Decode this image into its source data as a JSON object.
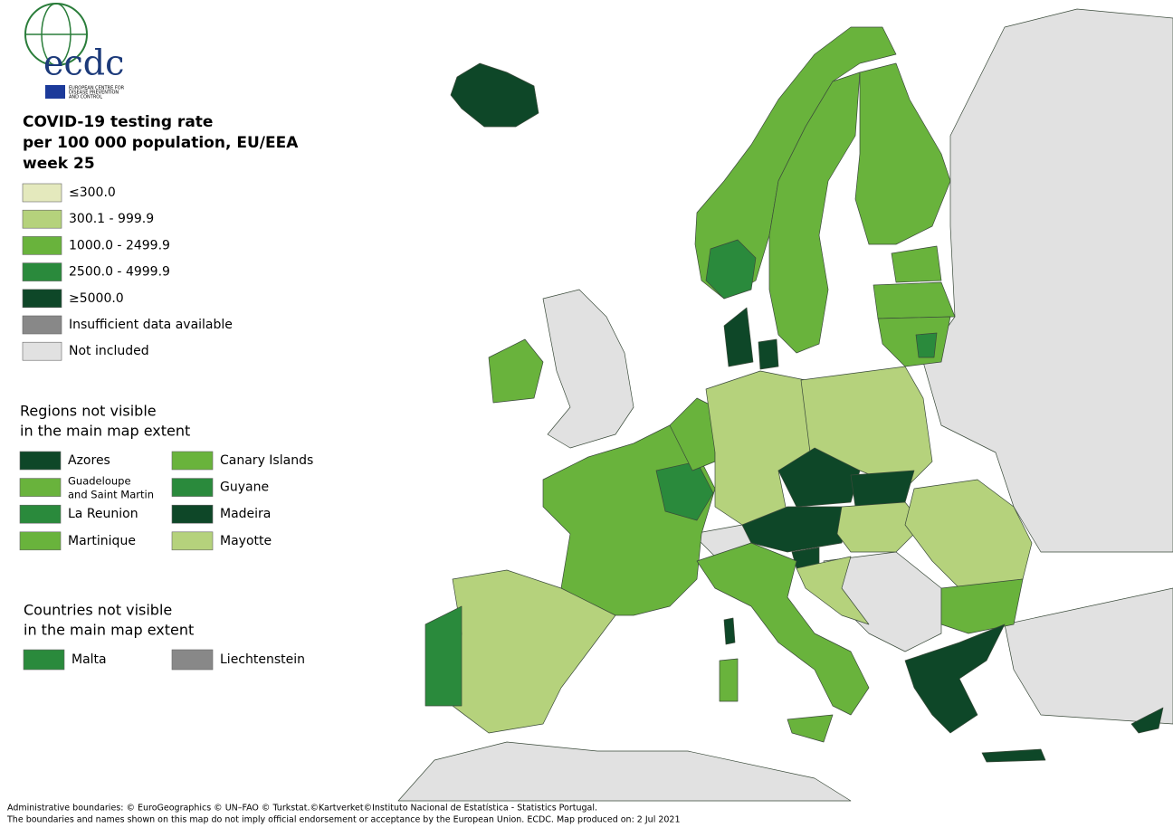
{
  "logo": {
    "name": "ecdc",
    "caption": [
      "EUROPEAN CENTRE FOR",
      "DISEASE PREVENTION",
      "AND CONTROL"
    ]
  },
  "title": [
    "COVID-19 testing rate",
    "per 100 000 population, EU/EEA",
    "week 25"
  ],
  "legend": {
    "items": [
      {
        "label": "≤300.0",
        "color": "#e4e9bd"
      },
      {
        "label": "300.1 - 999.9",
        "color": "#b5d27c"
      },
      {
        "label": "1000.0 - 2499.9",
        "color": "#69b33c"
      },
      {
        "label": "2500.0 - 4999.9",
        "color": "#2a8a3c"
      },
      {
        "label": "≥5000.0",
        "color": "#0e4728"
      },
      {
        "label": "Insufficient data available",
        "color": "#888888"
      },
      {
        "label": "Not included",
        "color": "#e1e1e1"
      }
    ]
  },
  "regions": {
    "title": [
      "Regions not visible",
      "in the main map extent"
    ],
    "items": [
      {
        "label": "Azores",
        "color": "#0e4728"
      },
      {
        "label": "Canary Islands",
        "color": "#69b33c"
      },
      {
        "label": "Guadeloupe and Saint Martin",
        "color": "#69b33c"
      },
      {
        "label": "Guyane",
        "color": "#2a8a3c"
      },
      {
        "label": "La Reunion",
        "color": "#2a8a3c"
      },
      {
        "label": "Madeira",
        "color": "#0e4728"
      },
      {
        "label": "Martinique",
        "color": "#69b33c"
      },
      {
        "label": "Mayotte",
        "color": "#b5d27c"
      }
    ]
  },
  "countries": {
    "title": [
      "Countries not visible",
      "in the main map extent"
    ],
    "items": [
      {
        "label": "Malta",
        "color": "#2a8a3c"
      },
      {
        "label": "Liechtenstein",
        "color": "#888888"
      }
    ]
  },
  "footer": [
    "Administrative boundaries: © EuroGeographics © UN–FAO © Turkstat.©Kartverket©Instituto Nacional de Estatística - Statistics Portugal.",
    "The boundaries and names shown on this map do not imply official endorsement or acceptance by the European Union. ECDC. Map produced on: 2 Jul 2021"
  ]
}
